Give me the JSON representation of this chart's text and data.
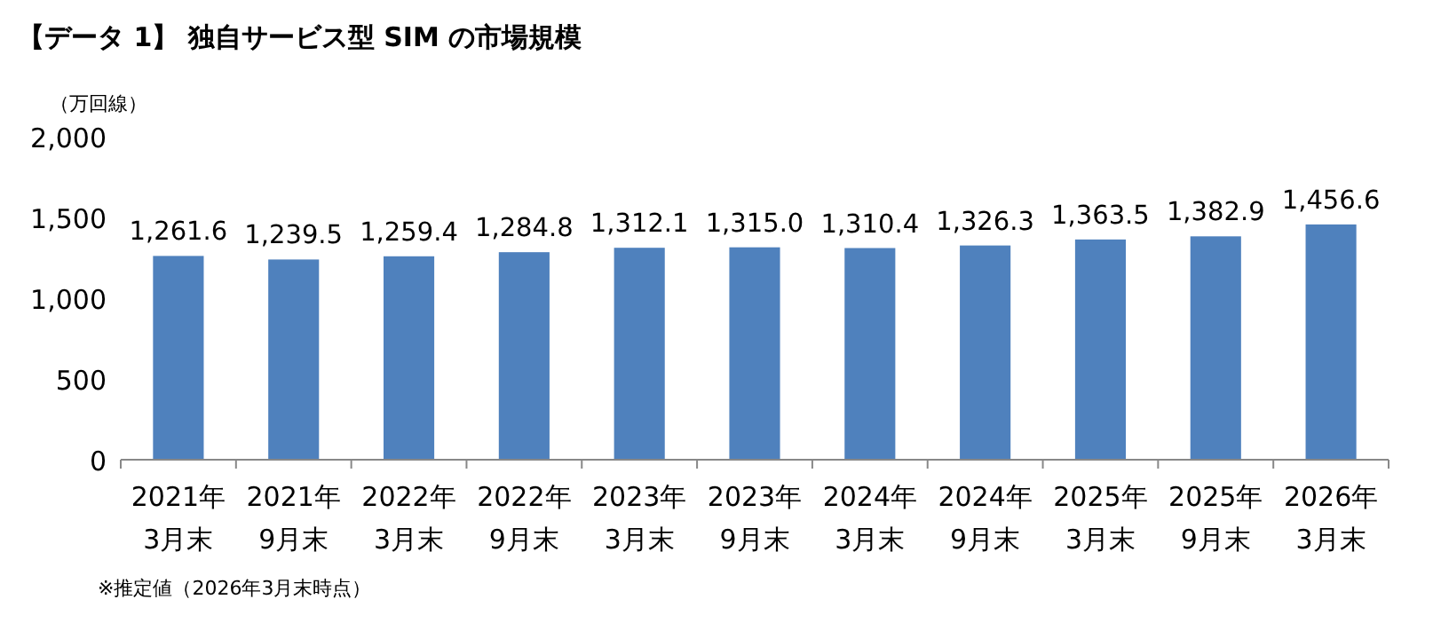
{
  "chart_data": {
    "type": "bar",
    "title": "【データ 1】 独自サービス型 SIM の市場規模",
    "ylabel": "（万回線）",
    "categories": [
      "2021年\n3月末",
      "2021年\n9月末",
      "2022年\n3月末",
      "2022年\n9月末",
      "2023年\n3月末",
      "2023年\n9月末",
      "2024年\n3月末",
      "2024年\n9月末",
      "2025年\n3月末",
      "2025年\n9月末",
      "2026年\n3月末"
    ],
    "values": [
      1261.6,
      1239.5,
      1259.4,
      1284.8,
      1312.1,
      1315.0,
      1310.4,
      1326.3,
      1363.5,
      1382.9,
      1456.6
    ],
    "value_labels": [
      "1,261.6",
      "1,239.5",
      "1,259.4",
      "1,284.8",
      "1,312.1",
      "1,315.0",
      "1,310.4",
      "1,326.3",
      "1,363.5",
      "1,382.9",
      "1,456.6"
    ],
    "color": "#4f81bd",
    "ylim": [
      0,
      2000
    ],
    "yticks": [
      {
        "value": 0,
        "label": "0"
      },
      {
        "value": 500,
        "label": "500"
      },
      {
        "value": 1000,
        "label": "1,000"
      },
      {
        "value": 1500,
        "label": "1,500"
      },
      {
        "value": 2000,
        "label": "2,000"
      }
    ],
    "annotations": [
      "※推定値（2026年3月末時点）"
    ]
  }
}
